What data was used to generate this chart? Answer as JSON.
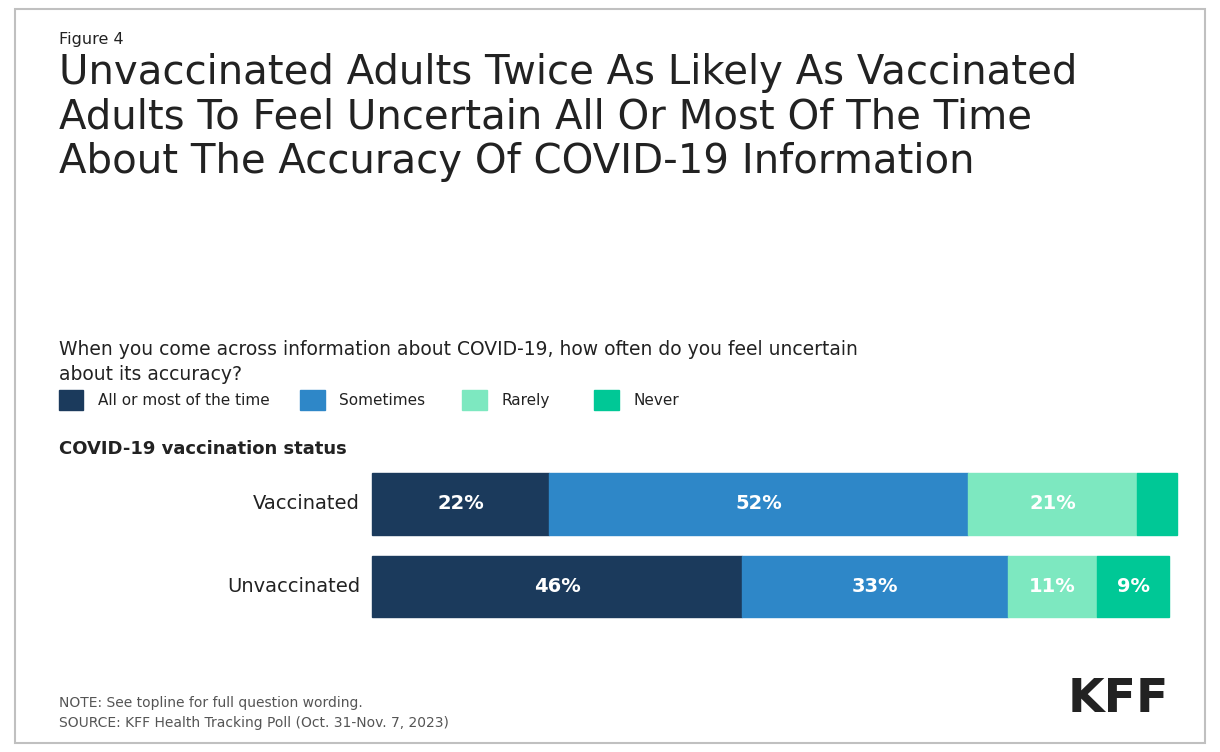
{
  "figure_label": "Figure 4",
  "title": "Unvaccinated Adults Twice As Likely As Vaccinated\nAdults To Feel Uncertain All Or Most Of The Time\nAbout The Accuracy Of COVID-19 Information",
  "subtitle": "When you come across information about COVID-19, how often do you feel uncertain\nabout its accuracy?",
  "section_label": "COVID-19 vaccination status",
  "categories": [
    "Vaccinated",
    "Unvaccinated"
  ],
  "legend_labels": [
    "All or most of the time",
    "Sometimes",
    "Rarely",
    "Never"
  ],
  "colors": [
    "#1b3a5c",
    "#2e87c8",
    "#7de8c0",
    "#00c896"
  ],
  "vaccinated": [
    22,
    52,
    21,
    5
  ],
  "unvaccinated": [
    46,
    33,
    11,
    9
  ],
  "note": "NOTE: See topline for full question wording.\nSOURCE: KFF Health Tracking Poll (Oct. 31-Nov. 7, 2023)",
  "bg_color": "#ffffff",
  "text_color": "#222222",
  "label_fontsize": 14,
  "title_fontsize": 29,
  "subtitle_fontsize": 13.5
}
